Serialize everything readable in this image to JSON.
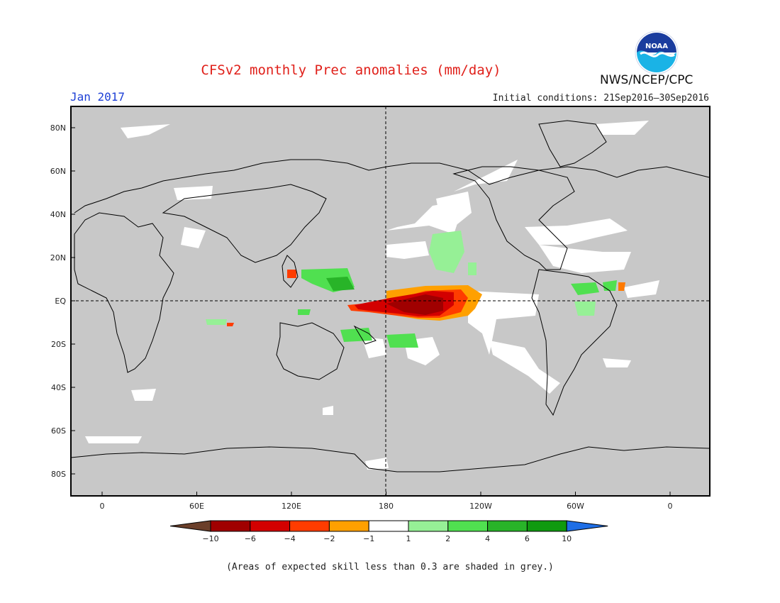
{
  "header": {
    "title": "CFSv2 monthly Prec anomalies (mm/day)",
    "agency": "NWS/NCEP/CPC",
    "month": "Jan 2017",
    "initial_conditions": "Initial conditions: 21Sep2016–30Sep2016",
    "logo_text": "NOAA"
  },
  "map": {
    "lat_labels": [
      "80N",
      "60N",
      "40N",
      "20N",
      "EQ",
      "20S",
      "40S",
      "60S",
      "80S"
    ],
    "lon_labels": [
      "0",
      "60E",
      "120E",
      "180",
      "120W",
      "60W",
      "0"
    ],
    "colors": {
      "ocean_grey": "#c8c8c8",
      "land_outline": "#000000"
    }
  },
  "colorbar": {
    "labels": [
      "−10",
      "−6",
      "−4",
      "−2",
      "−1",
      "1",
      "2",
      "4",
      "6",
      "10"
    ],
    "colors": [
      "#6b3f2a",
      "#a00000",
      "#d30000",
      "#ff3c00",
      "#ffa000",
      "#ffffff",
      "#96f096",
      "#50e050",
      "#28b428",
      "#0f9a0f",
      "#1e6ee6"
    ]
  },
  "footnote": "(Areas of expected skill less than 0.3 are shaded in grey.)"
}
